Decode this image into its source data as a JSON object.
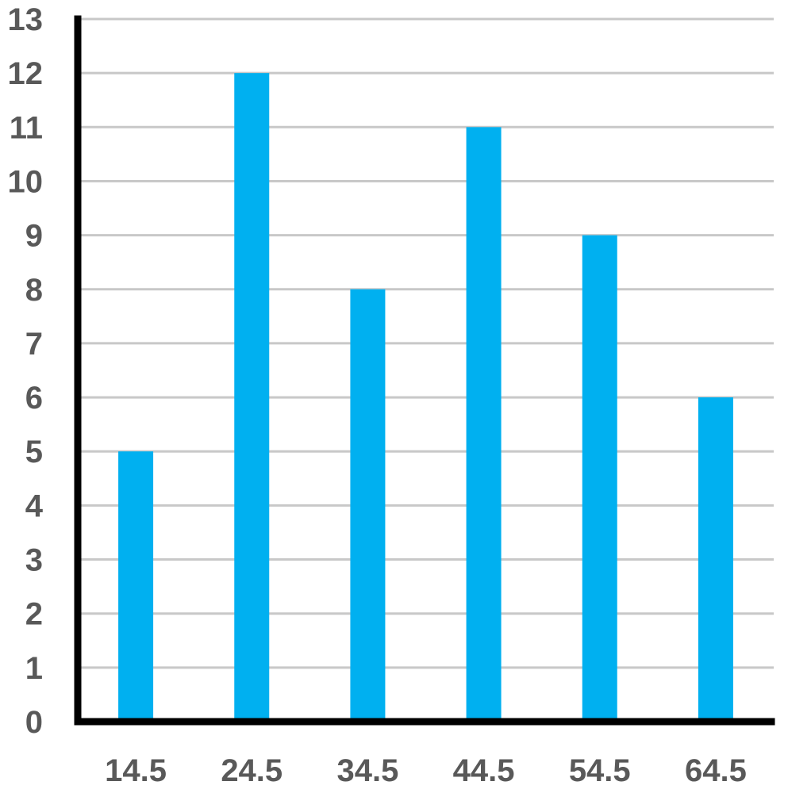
{
  "chart_data": {
    "type": "bar",
    "title": "",
    "xlabel": "",
    "ylabel": "",
    "categories": [
      "14.5",
      "24.5",
      "34.5",
      "44.5",
      "54.5",
      "64.5"
    ],
    "values": [
      5,
      12,
      8,
      11,
      9,
      6
    ],
    "ylim": [
      0,
      13
    ],
    "y_ticks": [
      "0",
      "1",
      "2",
      "3",
      "4",
      "5",
      "6",
      "7",
      "8",
      "9",
      "10",
      "11",
      "12",
      "13"
    ],
    "grid": true,
    "legend": "none",
    "colors": {
      "bar": "#00b0f0",
      "grid": "#c8c8c8",
      "axis": "#000000",
      "tick_text": "#595959"
    }
  }
}
